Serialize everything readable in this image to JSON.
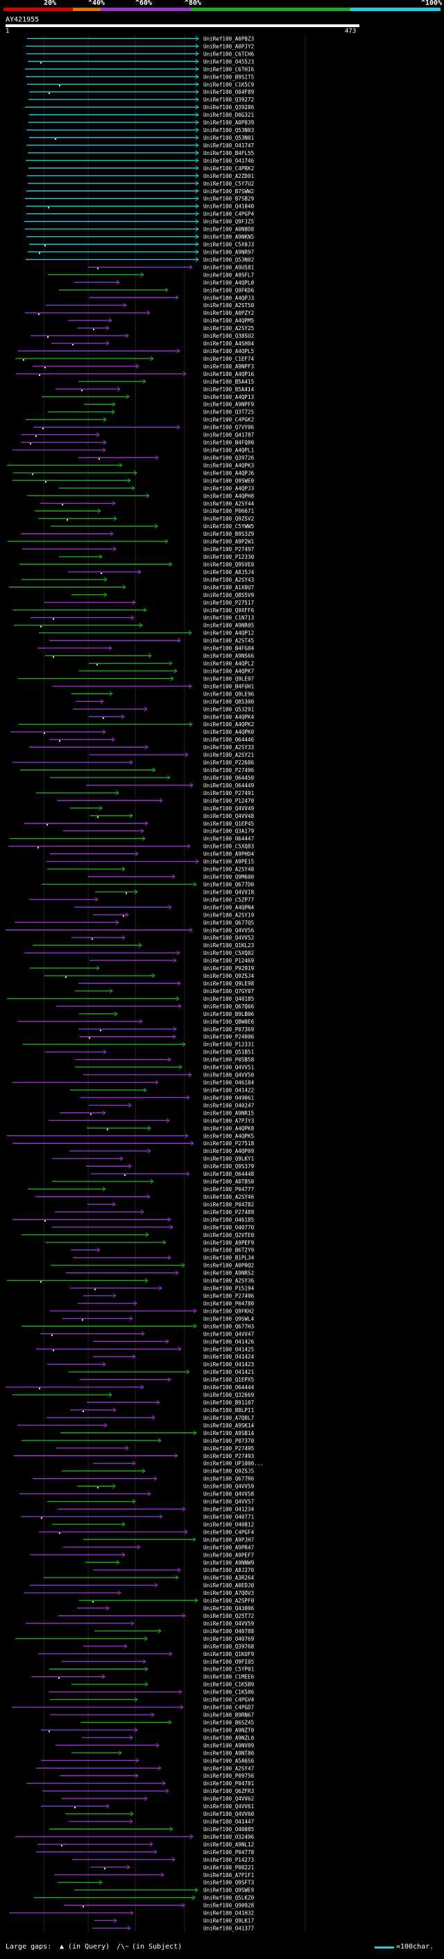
{
  "legend": {
    "labels": [
      "20%",
      "^40%",
      "^60%",
      "^80%",
      "^100%"
    ],
    "colors": [
      "#d40000",
      "#e07000",
      "#9933cc",
      "#22aa22",
      "#22ccdd"
    ]
  },
  "query": {
    "id": "AY421955",
    "start": "1",
    "end": "473"
  },
  "hits": [
    "UniRef100_A0P0Z3",
    "UniRef100_A0PJY2",
    "UniRef100_C6TCH6",
    "UniRef100_O45523",
    "UniRef100_C6THI6",
    "UniRef100_B9S1T5",
    "UniRef100_C1K5C9",
    "UniRef100_O04F89",
    "UniRef100_Q39272",
    "UniRef100_Q39286",
    "UniRef100_D0G321",
    "UniRef100_A0P039",
    "UniRef100_Q53N03",
    "UniRef100_Q53N01",
    "UniRef100_O41747",
    "UniRef100_B4FL55",
    "UniRef100_O41746",
    "UniRef100_C4PRK2",
    "UniRef100_A2ZD01",
    "UniRef100_C5Y7U2",
    "UniRef100_B7SWW2",
    "UniRef100_B7SB29",
    "UniRef100_Q41040",
    "UniRef100_C4PGP4",
    "UniRef100_Q9FJZ5",
    "UniRef100_A0N8D8",
    "UniRef100_A9NKN5",
    "UniRef100_C5X0J3",
    "UniRef100_A9NR97",
    "UniRef100_Q53N02",
    "UniRef100_A9U581",
    "UniRef100_A9SFL7",
    "UniRef100_A4QPL0",
    "UniRef100_Q9FKD6",
    "UniRef100_A4QPJ3",
    "UniRef100_A2ST50",
    "UniRef100_A0PZY2",
    "UniRef100_A4QPM5",
    "UniRef100_A2SY25",
    "UniRef100_Q38SU2",
    "UniRef100_A4SH04",
    "UniRef100_A4QPL5",
    "UniRef100_C1EF74",
    "UniRef100_A9NPF3",
    "UniRef100_A4QP16",
    "UniRef100_B5A415",
    "UniRef100_B5A414",
    "UniRef100_A4QP13",
    "UniRef100_A9NPF9",
    "UniRef100_Q3T725",
    "UniRef100_C4PGK2",
    "UniRef100_Q7VY06",
    "UniRef100_Q41787",
    "UniRef100_B4FQ80",
    "UniRef100_A4QPL1",
    "UniRef100_Q39726",
    "UniRef100_A4QPK3",
    "UniRef100_A4QPJ6",
    "UniRef100_Q9SWE0",
    "UniRef100_A4QPJ3",
    "UniRef100_A4QPH8",
    "UniRef100_A2SY44",
    "UniRef100_P06671",
    "UniRef100_Q9ZSV2",
    "UniRef100_C5YWW5",
    "UniRef100_B9S3Z9",
    "UniRef100_A9P2W1",
    "UniRef100_P27497",
    "UniRef100_P12330",
    "UniRef100_Q9SVE0",
    "UniRef100_A8J5J4",
    "UniRef100_A2SY43",
    "UniRef100_A1X0U7",
    "UniRef100_Q8S5V9",
    "UniRef100_P27517",
    "UniRef100_Q9XFF6",
    "UniRef100_C1N713",
    "UniRef100_A9NR05",
    "UniRef100_A4QP12",
    "UniRef100_A2ST45",
    "UniRef100_B4FG04",
    "UniRef100_A9NS66",
    "UniRef100_A4QPL2",
    "UniRef100_A4QPK7",
    "UniRef100_Q9LE97",
    "UniRef100_B4FUH1",
    "UniRef100_Q9LE96",
    "UniRef100_Q85300",
    "UniRef100_Q53291",
    "UniRef100_A4QPK4",
    "UniRef100_A4QPK2",
    "UniRef100_A4QPK0",
    "UniRef100_O64446",
    "UniRef100_A2SY33",
    "UniRef100_A2SY21",
    "UniRef100_P22686",
    "UniRef100_P27496",
    "UniRef100_O64450",
    "UniRef100_O64449",
    "UniRef100_P27491",
    "UniRef100_P12470",
    "UniRef100_Q4VV49",
    "UniRef100_Q4VV48",
    "UniRef100_Q1EP45",
    "UniRef100_Q3A179",
    "UniRef100_O64447",
    "UniRef100_C5XQ83",
    "UniRef100_A9PHD4",
    "UniRef100_A9PE15",
    "UniRef100_A2SY48",
    "UniRef100_Q9M600",
    "UniRef100_Q677D0",
    "UniRef100_Q4VVI8",
    "UniRef100_C5ZP77",
    "UniRef100_A4QPN4",
    "UniRef100_A2SY19",
    "UniRef100_Q677Q5",
    "UniRef100_Q4VV56",
    "UniRef100_Q4VV52",
    "UniRef100_Q1KL23",
    "UniRef100_C5XQ82",
    "UniRef100_P12469",
    "UniRef100_P92919",
    "UniRef100_Q9ZSJ4",
    "UniRef100_Q9LE98",
    "UniRef100_Q7GY07",
    "UniRef100_Q40185",
    "UniRef100_Q67Q66",
    "UniRef100_B9LB06",
    "UniRef100_Q8W0E6",
    "UniRef100_P07369",
    "UniRef100_P24006",
    "UniRef100_P12331",
    "UniRef100_Q51B51",
    "UniRef100_P05B58",
    "UniRef100_Q4VV51",
    "UniRef100_Q4VV50",
    "UniRef100_O46184",
    "UniRef100_O41422",
    "UniRef100_O49061",
    "UniRef100_O40247",
    "UniRef100_A9NR15",
    "UniRef100_A7PJY3",
    "UniRef100_A4QPK8",
    "UniRef100_A4QPK5",
    "UniRef100_P27518",
    "UniRef100_A4QP09",
    "UniRef100_Q9LKY1",
    "UniRef100_Q9S379",
    "UniRef100_O64448",
    "UniRef100_A0T8S0",
    "UniRef100_P04777",
    "UniRef100_A2SY46",
    "UniRef100_P04782",
    "UniRef100_P27489",
    "UniRef100_O46185",
    "UniRef100_O40770",
    "UniRef100_Q2VTE0",
    "UniRef100_A9PEF9",
    "UniRef100_B6T2Y9",
    "UniRef100_B1PL34",
    "UniRef100_A0P0Q2",
    "UniRef100_A9NRS2",
    "UniRef100_A2SY36",
    "UniRef100_P15194",
    "UniRef100_P27496",
    "UniRef100_P04780",
    "UniRef100_Q9FKH2",
    "UniRef100_Q9SWL4",
    "UniRef100_Q677H3",
    "UniRef100_Q4VV47",
    "UniRef100_O41426",
    "UniRef100_O41425",
    "UniRef100_O41424",
    "UniRef100_O41423",
    "UniRef100_O41421",
    "UniRef100_Q1EPX5",
    "UniRef100_O64444",
    "UniRef100_Q32669",
    "UniRef100_B91107",
    "UniRef100_B8LPI1",
    "UniRef100_A7Q0L7",
    "UniRef100_A9SK14",
    "UniRef100_A9SB14",
    "UniRef100_P07370",
    "UniRef100_P27495",
    "UniRef100_P27493",
    "UniRef100_UP1000...",
    "UniRef100_Q9ZSJ5",
    "UniRef100_Q677R6",
    "UniRef100_Q4VV59",
    "UniRef100_Q4VV58",
    "UniRef100_Q4VV57",
    "UniRef100_O41234",
    "UniRef100_O40771",
    "UniRef100_O40812",
    "UniRef100_C4PGF4",
    "UniRef100_A9PJH7",
    "UniRef100_A9PR47",
    "UniRef100_A9PEF7",
    "UniRef100_A9NNW9",
    "UniRef100_A8J270",
    "UniRef100_A3R264",
    "UniRef100_A0EDJ0",
    "UniRef100_A7QOV3",
    "UniRef100_A2SPF0",
    "UniRef100_Q43006",
    "UniRef100_Q25T72",
    "UniRef100_O4VV59",
    "UniRef100_O40788",
    "UniRef100_O40769",
    "UniRef100_Q39768",
    "UniRef100_Q1KUF9",
    "UniRef100_O9FI05",
    "UniRef100_C5YP01",
    "UniRef100_C1MEE6",
    "UniRef100_C1K5B9",
    "UniRef100_C1K586",
    "UniRef100_C4PGV4",
    "UniRef100_C4PGD7",
    "UniRef100_B9RN67",
    "UniRef100_B6SZ45",
    "UniRef100_A9NZT0",
    "UniRef100_A9NZL0",
    "UniRef100_A9NV09",
    "UniRef100_A9NT80",
    "UniRef100_A5A6S6",
    "UniRef100_A2SY47",
    "UniRef100_P09756",
    "UniRef100_P04781",
    "UniRef100_Q6ZFR3",
    "UniRef100_Q4VV62",
    "UniRef100_Q4VV61",
    "UniRef100_Q4VV60",
    "UniRef100_O41447",
    "UniRef100_O40085",
    "UniRef100_O32496",
    "UniRef100_A9NL12",
    "UniRef100_P04778",
    "UniRef100_P14273",
    "UniRef100_P08221",
    "UniRef100_A7P1F1",
    "UniRef100_Q9SFT3",
    "UniRef100_Q9SWE9",
    "UniRef100_Q5LKZ0",
    "UniRef100_Q90928",
    "UniRef100_O41H32",
    "UniRef100_Q9LK17",
    "UniRef100_O41377"
  ],
  "footer": {
    "gaps_prefix": "Large gaps:",
    "query_gap": "(in Query)",
    "subject_gap": "(in Subject)",
    "scale_label": "=100char."
  }
}
